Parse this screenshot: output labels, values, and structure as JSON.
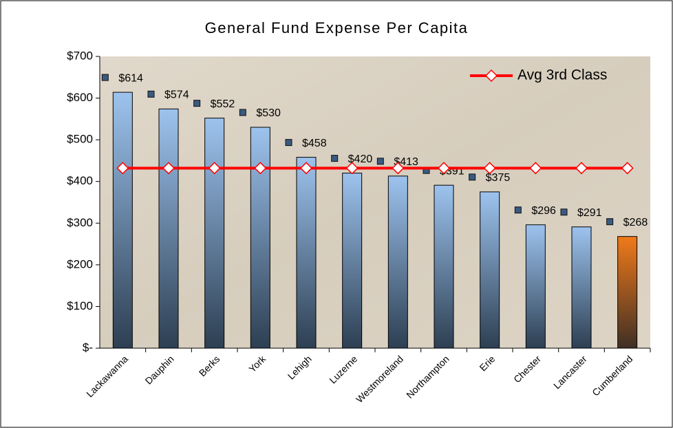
{
  "chart_data": {
    "type": "bar",
    "title": "General Fund Expense Per Capita",
    "categories": [
      "Lackawanna",
      "Dauphin",
      "Berks",
      "York",
      "Lehigh",
      "Luzerne",
      "Westmoreland",
      "Northampton",
      "Erie",
      "Chester",
      "Lancaster",
      "Cumberland"
    ],
    "values": [
      614,
      574,
      552,
      530,
      458,
      420,
      413,
      391,
      375,
      296,
      291,
      268
    ],
    "value_labels": [
      "$614",
      "$574",
      "$552",
      "$530",
      "$458",
      "$420",
      "$413",
      "$391",
      "$375",
      "$296",
      "$291",
      "$268"
    ],
    "colors": [
      "#9dc3ee",
      "#9dc3ee",
      "#9dc3ee",
      "#9dc3ee",
      "#9dc3ee",
      "#9dc3ee",
      "#9dc3ee",
      "#9dc3ee",
      "#9dc3ee",
      "#9dc3ee",
      "#9dc3ee",
      "#f07a1a"
    ],
    "lines": [
      {
        "name": "Avg 3rd Class",
        "color": "#ff0000",
        "values": [
          432,
          432,
          432,
          432,
          432,
          432,
          432,
          432,
          432,
          432,
          432,
          432
        ]
      }
    ],
    "ylim": [
      0,
      700
    ],
    "yticks": [
      {
        "value": 0,
        "label": "$-"
      },
      {
        "value": 100,
        "label": "$100"
      },
      {
        "value": 200,
        "label": "$200"
      },
      {
        "value": 300,
        "label": "$300"
      },
      {
        "value": 400,
        "label": "$400"
      },
      {
        "value": 500,
        "label": "$500"
      },
      {
        "value": 600,
        "label": "$600"
      },
      {
        "value": 700,
        "label": "$700"
      }
    ],
    "legend": "top-right"
  }
}
